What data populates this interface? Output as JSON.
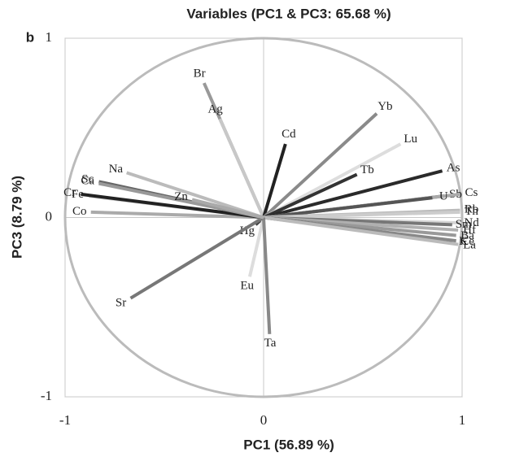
{
  "chart_data": {
    "type": "vector",
    "title": "Variables (PC1 & PC3: 65.68 %)",
    "panel_label": "b",
    "x_label": "PC1 (56.89 %)",
    "y_label": "PC3 (8.79 %)",
    "xlim": [
      -1,
      1
    ],
    "ylim": [
      -1,
      1
    ],
    "xticks": [
      -1,
      0,
      1
    ],
    "yticks": [
      -1,
      0,
      1
    ],
    "circle": true,
    "points": [
      {
        "name": "Br",
        "x": -0.3,
        "y": 0.75,
        "color": "#999999"
      },
      {
        "name": "Ag",
        "x": -0.22,
        "y": 0.55,
        "color": "#c8c8c8"
      },
      {
        "name": "Cd",
        "x": 0.11,
        "y": 0.41,
        "color": "#222222"
      },
      {
        "name": "Yb",
        "x": 0.57,
        "y": 0.58,
        "color": "#8a8a8a"
      },
      {
        "name": "Lu",
        "x": 0.69,
        "y": 0.41,
        "color": "#dddddd"
      },
      {
        "name": "Tb",
        "x": 0.47,
        "y": 0.24,
        "color": "#333333"
      },
      {
        "name": "As",
        "x": 0.9,
        "y": 0.26,
        "color": "#2a2a2a"
      },
      {
        "name": "Sb",
        "x": 0.91,
        "y": 0.12,
        "color": "#666666"
      },
      {
        "name": "Cs",
        "x": 0.99,
        "y": 0.13,
        "color": "#aaaaaa"
      },
      {
        "name": "U",
        "x": 0.85,
        "y": 0.11,
        "color": "#555555"
      },
      {
        "name": "Rb",
        "x": 0.99,
        "y": 0.04,
        "color": "#bbbbbb"
      },
      {
        "name": "Th",
        "x": 0.99,
        "y": 0.03,
        "color": "#cccccc"
      },
      {
        "name": "Nd",
        "x": 0.99,
        "y": -0.03,
        "color": "#d5d5d5"
      },
      {
        "name": "Sm",
        "x": 0.95,
        "y": -0.04,
        "color": "#777777"
      },
      {
        "name": "Hf",
        "x": 0.98,
        "y": -0.07,
        "color": "#b0b0b0"
      },
      {
        "name": "Ba",
        "x": 0.97,
        "y": -0.1,
        "color": "#999999"
      },
      {
        "name": "K",
        "x": 0.95,
        "y": -0.13,
        "color": "#222222"
      },
      {
        "name": "Ce",
        "x": 0.97,
        "y": -0.13,
        "color": "#888888"
      },
      {
        "name": "La",
        "x": 0.98,
        "y": -0.15,
        "color": "#bbbbbb"
      },
      {
        "name": "Hg",
        "x": -0.04,
        "y": -0.04,
        "color": "#444444"
      },
      {
        "name": "Eu",
        "x": -0.07,
        "y": -0.33,
        "color": "#dddddd"
      },
      {
        "name": "Ta",
        "x": 0.03,
        "y": -0.65,
        "color": "#888888"
      },
      {
        "name": "Sr",
        "x": -0.67,
        "y": -0.45,
        "color": "#777777"
      },
      {
        "name": "Co",
        "x": -0.87,
        "y": 0.03,
        "color": "#aaaaaa"
      },
      {
        "name": "Fe",
        "x": -0.88,
        "y": 0.12,
        "color": "#cccccc"
      },
      {
        "name": "Cr",
        "x": -0.92,
        "y": 0.13,
        "color": "#222222"
      },
      {
        "name": "Sc",
        "x": -0.83,
        "y": 0.2,
        "color": "#666666"
      },
      {
        "name": "Ca",
        "x": -0.83,
        "y": 0.19,
        "color": "#999999"
      },
      {
        "name": "Na",
        "x": -0.69,
        "y": 0.25,
        "color": "#bbbbbb"
      },
      {
        "name": "Zn",
        "x": -0.36,
        "y": 0.1,
        "color": "#aaaaaa"
      }
    ]
  }
}
